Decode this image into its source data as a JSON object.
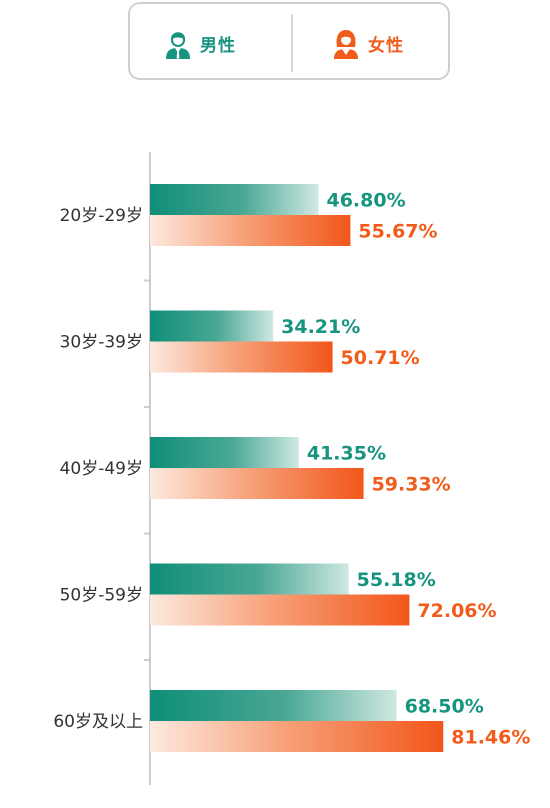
{
  "legend": {
    "male_label": "男性",
    "female_label": "女性",
    "male_icon": "male-person-icon",
    "female_icon": "female-person-icon"
  },
  "colors": {
    "male": "#16947f",
    "female": "#f25c1a",
    "axis": "#cccccc"
  },
  "chart_data": {
    "type": "bar",
    "orientation": "horizontal",
    "categories": [
      "20岁-29岁",
      "30岁-39岁",
      "40岁-49岁",
      "50岁-59岁",
      "60岁及以上"
    ],
    "series": [
      {
        "name": "男性",
        "values": [
          46.8,
          34.21,
          41.35,
          55.18,
          68.5
        ],
        "labels": [
          "46.80%",
          "34.21%",
          "41.35%",
          "55.18%",
          "68.50%"
        ]
      },
      {
        "name": "女性",
        "values": [
          55.67,
          50.71,
          59.33,
          72.06,
          81.46
        ],
        "labels": [
          "55.67%",
          "50.71%",
          "59.33%",
          "72.06%",
          "81.46%"
        ]
      }
    ],
    "xlim": [
      0,
      100
    ],
    "title": "",
    "xlabel": "",
    "ylabel": "",
    "grid": false,
    "legend_position": "top"
  }
}
